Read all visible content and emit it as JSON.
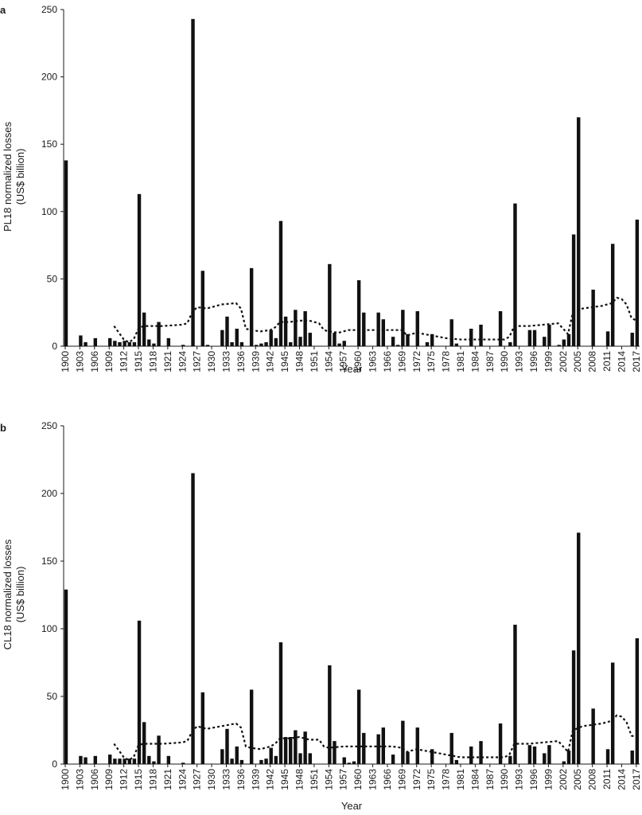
{
  "chart_data": [
    {
      "panel": "a",
      "type": "bar",
      "ylabel": [
        "PL18 normalized losses",
        "(US$ billion)"
      ],
      "xlabel": "Year",
      "ylim": [
        0,
        250
      ],
      "yticks": [
        0,
        50,
        100,
        150,
        200,
        250
      ],
      "xtick_labels": [
        "1900",
        "1903",
        "1906",
        "1909",
        "1912",
        "1915",
        "1918",
        "1921",
        "1924",
        "1927",
        "1930",
        "1933",
        "1936",
        "1939",
        "1942",
        "1945",
        "1948",
        "1951",
        "1954",
        "1957",
        "1960",
        "1963",
        "1966",
        "1969",
        "1972",
        "1975",
        "1978",
        "1981",
        "1984",
        "1987",
        "1990",
        "1993",
        "1996",
        "1999",
        "2002",
        "2005",
        "2008",
        "2011",
        "2014",
        "2017"
      ],
      "bars": [
        [
          1900,
          138
        ],
        [
          1903,
          8
        ],
        [
          1904,
          3
        ],
        [
          1906,
          6
        ],
        [
          1909,
          6
        ],
        [
          1910,
          4
        ],
        [
          1911,
          3
        ],
        [
          1912,
          4
        ],
        [
          1913,
          3
        ],
        [
          1914,
          3
        ],
        [
          1915,
          113
        ],
        [
          1916,
          25
        ],
        [
          1917,
          5
        ],
        [
          1918,
          2
        ],
        [
          1919,
          18
        ],
        [
          1921,
          6
        ],
        [
          1924,
          1
        ],
        [
          1926,
          243
        ],
        [
          1928,
          56
        ],
        [
          1929,
          1
        ],
        [
          1932,
          12
        ],
        [
          1933,
          22
        ],
        [
          1934,
          3
        ],
        [
          1935,
          13
        ],
        [
          1936,
          3
        ],
        [
          1938,
          58
        ],
        [
          1939,
          1
        ],
        [
          1940,
          2
        ],
        [
          1941,
          3
        ],
        [
          1942,
          12
        ],
        [
          1943,
          6
        ],
        [
          1944,
          93
        ],
        [
          1945,
          22
        ],
        [
          1946,
          3
        ],
        [
          1947,
          27
        ],
        [
          1948,
          7
        ],
        [
          1949,
          26
        ],
        [
          1950,
          10
        ],
        [
          1954,
          61
        ],
        [
          1955,
          10
        ],
        [
          1956,
          2
        ],
        [
          1957,
          4
        ],
        [
          1960,
          49
        ],
        [
          1961,
          25
        ],
        [
          1964,
          25
        ],
        [
          1965,
          20
        ],
        [
          1967,
          7
        ],
        [
          1968,
          1
        ],
        [
          1969,
          27
        ],
        [
          1970,
          9
        ],
        [
          1972,
          26
        ],
        [
          1974,
          3
        ],
        [
          1975,
          9
        ],
        [
          1979,
          20
        ],
        [
          1980,
          2
        ],
        [
          1983,
          13
        ],
        [
          1985,
          16
        ],
        [
          1989,
          26
        ],
        [
          1991,
          3
        ],
        [
          1992,
          106
        ],
        [
          1995,
          12
        ],
        [
          1996,
          12
        ],
        [
          1998,
          7
        ],
        [
          1999,
          16
        ],
        [
          2001,
          1
        ],
        [
          2002,
          5
        ],
        [
          2003,
          9
        ],
        [
          2004,
          83
        ],
        [
          2005,
          170
        ],
        [
          2008,
          42
        ],
        [
          2011,
          11
        ],
        [
          2012,
          76
        ],
        [
          2016,
          10
        ],
        [
          2017,
          94
        ]
      ],
      "trend": [
        [
          1910,
          15
        ],
        [
          1911,
          10
        ],
        [
          1912,
          5
        ],
        [
          1913,
          3
        ],
        [
          1914,
          5
        ],
        [
          1915,
          13
        ],
        [
          1916,
          15
        ],
        [
          1918,
          15
        ],
        [
          1920,
          15
        ],
        [
          1924,
          16
        ],
        [
          1925,
          17
        ],
        [
          1926,
          25
        ],
        [
          1927,
          29
        ],
        [
          1929,
          28
        ],
        [
          1932,
          31
        ],
        [
          1935,
          32
        ],
        [
          1936,
          28
        ],
        [
          1937,
          13
        ],
        [
          1938,
          12
        ],
        [
          1940,
          11
        ],
        [
          1942,
          12
        ],
        [
          1943,
          14
        ],
        [
          1944,
          18
        ],
        [
          1946,
          18
        ],
        [
          1948,
          19
        ],
        [
          1950,
          19
        ],
        [
          1952,
          17
        ],
        [
          1953,
          12
        ],
        [
          1954,
          11
        ],
        [
          1956,
          10
        ],
        [
          1958,
          12
        ],
        [
          1960,
          12
        ],
        [
          1963,
          12
        ],
        [
          1967,
          12
        ],
        [
          1969,
          12
        ],
        [
          1970,
          8
        ],
        [
          1972,
          10
        ],
        [
          1975,
          8
        ],
        [
          1978,
          6
        ],
        [
          1981,
          5
        ],
        [
          1984,
          5
        ],
        [
          1987,
          5
        ],
        [
          1990,
          5
        ],
        [
          1991,
          7
        ],
        [
          1992,
          15
        ],
        [
          1995,
          15
        ],
        [
          1998,
          16
        ],
        [
          2001,
          17
        ],
        [
          2003,
          9
        ],
        [
          2004,
          25
        ],
        [
          2006,
          28
        ],
        [
          2008,
          29
        ],
        [
          2010,
          30
        ],
        [
          2012,
          32
        ],
        [
          2013,
          36
        ],
        [
          2014,
          35
        ],
        [
          2015,
          31
        ],
        [
          2016,
          21
        ],
        [
          2017,
          19
        ]
      ]
    },
    {
      "panel": "b",
      "type": "bar",
      "ylabel": [
        "CL18 normalized losses",
        "(US$ billion)"
      ],
      "xlabel": "Year",
      "ylim": [
        0,
        250
      ],
      "yticks": [
        0,
        50,
        100,
        150,
        200,
        250
      ],
      "xtick_labels": [
        "1900",
        "1903",
        "1906",
        "1909",
        "1912",
        "1915",
        "1918",
        "1921",
        "1924",
        "1927",
        "1930",
        "1933",
        "1936",
        "1939",
        "1942",
        "1945",
        "1948",
        "1951",
        "1954",
        "1957",
        "1960",
        "1963",
        "1966",
        "1969",
        "1972",
        "1975",
        "1978",
        "1981",
        "1984",
        "1987",
        "1990",
        "1993",
        "1996",
        "1999",
        "2002",
        "2005",
        "2008",
        "2011",
        "2014",
        "2017"
      ],
      "bars": [
        [
          1900,
          129
        ],
        [
          1903,
          6
        ],
        [
          1904,
          5
        ],
        [
          1906,
          6
        ],
        [
          1909,
          7
        ],
        [
          1910,
          4
        ],
        [
          1911,
          4
        ],
        [
          1912,
          4
        ],
        [
          1913,
          4
        ],
        [
          1914,
          4
        ],
        [
          1915,
          106
        ],
        [
          1916,
          31
        ],
        [
          1917,
          6
        ],
        [
          1918,
          2
        ],
        [
          1919,
          21
        ],
        [
          1921,
          6
        ],
        [
          1924,
          1
        ],
        [
          1926,
          215
        ],
        [
          1928,
          53
        ],
        [
          1932,
          11
        ],
        [
          1933,
          26
        ],
        [
          1934,
          4
        ],
        [
          1935,
          13
        ],
        [
          1936,
          3
        ],
        [
          1938,
          55
        ],
        [
          1940,
          3
        ],
        [
          1941,
          4
        ],
        [
          1942,
          12
        ],
        [
          1943,
          6
        ],
        [
          1944,
          90
        ],
        [
          1945,
          20
        ],
        [
          1946,
          20
        ],
        [
          1947,
          25
        ],
        [
          1948,
          8
        ],
        [
          1949,
          24
        ],
        [
          1950,
          8
        ],
        [
          1954,
          73
        ],
        [
          1955,
          17
        ],
        [
          1957,
          5
        ],
        [
          1958,
          1
        ],
        [
          1959,
          2
        ],
        [
          1960,
          55
        ],
        [
          1961,
          23
        ],
        [
          1964,
          22
        ],
        [
          1965,
          27
        ],
        [
          1967,
          7
        ],
        [
          1969,
          32
        ],
        [
          1970,
          9
        ],
        [
          1972,
          27
        ],
        [
          1975,
          11
        ],
        [
          1979,
          23
        ],
        [
          1980,
          3
        ],
        [
          1983,
          13
        ],
        [
          1985,
          17
        ],
        [
          1989,
          30
        ],
        [
          1991,
          6
        ],
        [
          1992,
          103
        ],
        [
          1995,
          14
        ],
        [
          1996,
          13
        ],
        [
          1998,
          8
        ],
        [
          1999,
          14
        ],
        [
          2002,
          2
        ],
        [
          2003,
          10
        ],
        [
          2004,
          84
        ],
        [
          2005,
          171
        ],
        [
          2008,
          41
        ],
        [
          2011,
          11
        ],
        [
          2012,
          75
        ],
        [
          2016,
          10
        ],
        [
          2017,
          93
        ]
      ],
      "trend": [
        [
          1910,
          15
        ],
        [
          1911,
          10
        ],
        [
          1912,
          5
        ],
        [
          1913,
          3
        ],
        [
          1914,
          5
        ],
        [
          1915,
          14
        ],
        [
          1916,
          15
        ],
        [
          1918,
          15
        ],
        [
          1920,
          15
        ],
        [
          1924,
          16
        ],
        [
          1925,
          17
        ],
        [
          1926,
          24
        ],
        [
          1927,
          28
        ],
        [
          1929,
          26
        ],
        [
          1932,
          28
        ],
        [
          1935,
          30
        ],
        [
          1936,
          27
        ],
        [
          1937,
          13
        ],
        [
          1938,
          12
        ],
        [
          1940,
          11
        ],
        [
          1942,
          13
        ],
        [
          1943,
          15
        ],
        [
          1944,
          19
        ],
        [
          1946,
          19
        ],
        [
          1948,
          20
        ],
        [
          1950,
          18
        ],
        [
          1952,
          18
        ],
        [
          1953,
          13
        ],
        [
          1954,
          12
        ],
        [
          1957,
          13
        ],
        [
          1960,
          13
        ],
        [
          1963,
          13
        ],
        [
          1967,
          13
        ],
        [
          1969,
          12
        ],
        [
          1970,
          9
        ],
        [
          1972,
          11
        ],
        [
          1975,
          9
        ],
        [
          1978,
          7
        ],
        [
          1981,
          5
        ],
        [
          1984,
          5
        ],
        [
          1987,
          5
        ],
        [
          1990,
          5
        ],
        [
          1991,
          7
        ],
        [
          1992,
          15
        ],
        [
          1995,
          15
        ],
        [
          1998,
          16
        ],
        [
          2001,
          17
        ],
        [
          2003,
          9
        ],
        [
          2004,
          25
        ],
        [
          2006,
          28
        ],
        [
          2008,
          29
        ],
        [
          2010,
          30
        ],
        [
          2012,
          32
        ],
        [
          2013,
          36
        ],
        [
          2014,
          35
        ],
        [
          2015,
          31
        ],
        [
          2016,
          21
        ],
        [
          2017,
          20
        ]
      ]
    }
  ]
}
